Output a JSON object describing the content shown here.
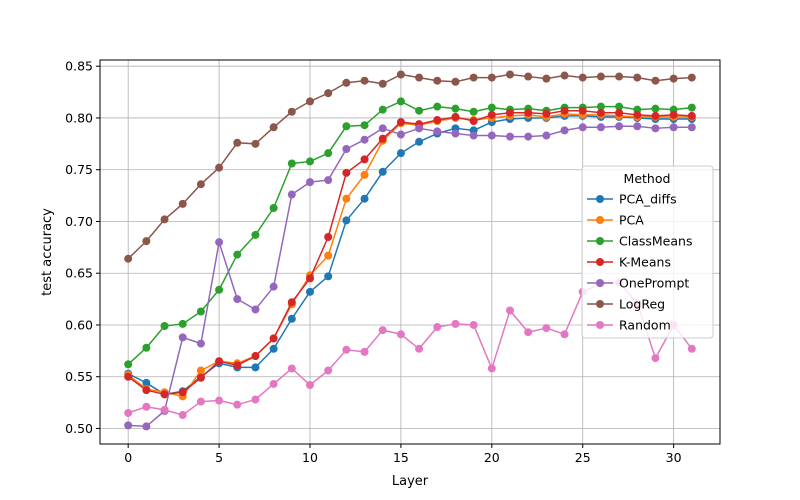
{
  "chart_data": {
    "type": "line",
    "title": "",
    "xlabel": "Layer",
    "ylabel": "test accuracy",
    "xlim": [
      -1.55,
      32.55
    ],
    "ylim": [
      0.485,
      0.856
    ],
    "xticks": [
      0,
      5,
      10,
      15,
      20,
      25,
      30
    ],
    "yticks": [
      0.5,
      0.55,
      0.6,
      0.65,
      0.7,
      0.75,
      0.8,
      0.85
    ],
    "grid": true,
    "legend": {
      "title": "Method",
      "placement": "center-right"
    },
    "x": [
      0,
      1,
      2,
      3,
      4,
      5,
      6,
      7,
      8,
      9,
      10,
      11,
      12,
      13,
      14,
      15,
      16,
      17,
      18,
      19,
      20,
      21,
      22,
      23,
      24,
      25,
      26,
      27,
      28,
      29,
      30,
      31
    ],
    "series": [
      {
        "name": "PCA_diffs",
        "color": "#1f77b4",
        "values": [
          0.553,
          0.544,
          0.533,
          0.536,
          0.55,
          0.563,
          0.559,
          0.559,
          0.577,
          0.606,
          0.632,
          0.647,
          0.701,
          0.722,
          0.748,
          0.766,
          0.777,
          0.785,
          0.79,
          0.788,
          0.796,
          0.799,
          0.8,
          0.8,
          0.802,
          0.802,
          0.801,
          0.801,
          0.8,
          0.799,
          0.799,
          0.799
        ]
      },
      {
        "name": "PCA",
        "color": "#ff7f0e",
        "values": [
          0.552,
          0.538,
          0.535,
          0.531,
          0.556,
          0.565,
          0.563,
          0.57,
          0.587,
          0.62,
          0.648,
          0.667,
          0.722,
          0.745,
          0.778,
          0.795,
          0.793,
          0.797,
          0.8,
          0.798,
          0.8,
          0.802,
          0.803,
          0.801,
          0.804,
          0.803,
          0.803,
          0.802,
          0.801,
          0.801,
          0.801,
          0.801
        ]
      },
      {
        "name": "ClassMeans",
        "color": "#2ca02c",
        "values": [
          0.562,
          0.578,
          0.599,
          0.601,
          0.613,
          0.634,
          0.668,
          0.687,
          0.713,
          0.756,
          0.758,
          0.766,
          0.792,
          0.793,
          0.808,
          0.816,
          0.807,
          0.811,
          0.809,
          0.806,
          0.81,
          0.808,
          0.809,
          0.807,
          0.81,
          0.81,
          0.811,
          0.811,
          0.808,
          0.809,
          0.808,
          0.81
        ]
      },
      {
        "name": "K-Means",
        "color": "#d62728",
        "values": [
          0.55,
          0.537,
          0.533,
          0.535,
          0.549,
          0.565,
          0.561,
          0.57,
          0.587,
          0.622,
          0.645,
          0.685,
          0.747,
          0.76,
          0.78,
          0.796,
          0.794,
          0.798,
          0.801,
          0.797,
          0.803,
          0.805,
          0.805,
          0.804,
          0.807,
          0.807,
          0.805,
          0.805,
          0.803,
          0.802,
          0.803,
          0.802
        ]
      },
      {
        "name": "OnePrompt",
        "color": "#9467bd",
        "values": [
          0.503,
          0.502,
          0.517,
          0.588,
          0.582,
          0.68,
          0.625,
          0.615,
          0.637,
          0.726,
          0.738,
          0.74,
          0.77,
          0.779,
          0.79,
          0.784,
          0.79,
          0.787,
          0.785,
          0.783,
          0.783,
          0.782,
          0.782,
          0.783,
          0.788,
          0.791,
          0.791,
          0.792,
          0.792,
          0.79,
          0.791,
          0.791
        ]
      },
      {
        "name": "LogReg",
        "color": "#8c564b",
        "values": [
          0.664,
          0.681,
          0.702,
          0.717,
          0.736,
          0.752,
          0.776,
          0.775,
          0.791,
          0.806,
          0.816,
          0.824,
          0.834,
          0.836,
          0.833,
          0.842,
          0.839,
          0.836,
          0.835,
          0.839,
          0.839,
          0.842,
          0.84,
          0.838,
          0.841,
          0.839,
          0.84,
          0.84,
          0.839,
          0.836,
          0.838,
          0.839
        ]
      },
      {
        "name": "Random",
        "color": "#e377c2",
        "values": [
          0.515,
          0.521,
          0.518,
          0.513,
          0.526,
          0.527,
          0.523,
          0.528,
          0.543,
          0.558,
          0.542,
          0.556,
          0.576,
          0.574,
          0.595,
          0.591,
          0.577,
          0.598,
          0.601,
          0.6,
          0.558,
          0.614,
          0.593,
          0.597,
          0.591,
          0.632,
          0.64,
          0.641,
          0.621,
          0.568,
          0.6,
          0.577
        ]
      }
    ]
  }
}
